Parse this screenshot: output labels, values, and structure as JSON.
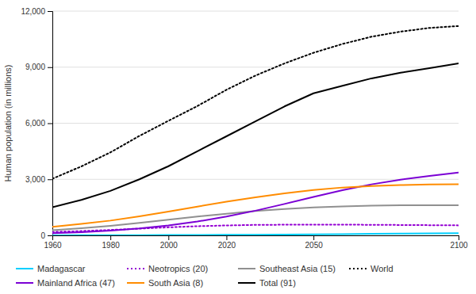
{
  "chart_data": {
    "type": "line",
    "ylabel": "Human population (in millions)",
    "x": [
      1960,
      1970,
      1980,
      1990,
      2000,
      2010,
      2020,
      2030,
      2040,
      2050,
      2060,
      2070,
      2080,
      2090,
      2100
    ],
    "xlim": [
      1960,
      2100
    ],
    "ylim": [
      0,
      12000
    ],
    "xticks": [
      1960,
      1980,
      2000,
      2020,
      2050,
      2100
    ],
    "yticks": [
      0,
      {
        "value": 3000,
        "label": "3,000"
      },
      {
        "value": 6000,
        "label": "6,000"
      },
      {
        "value": 9000,
        "label": "9,000"
      },
      {
        "value": 12000,
        "label": "12,000"
      }
    ],
    "grid": "y",
    "legend": "bottom",
    "series": [
      {
        "name": "Madagascar",
        "color": "#00CFFF",
        "line_style": "solid",
        "values": [
          5,
          7,
          9,
          12,
          16,
          20,
          27,
          35,
          45,
          55,
          68,
          80,
          93,
          103,
          112
        ]
      },
      {
        "name": "Neotropics (20)",
        "color": "#9400D3",
        "line_style": "dotted",
        "values": [
          180,
          230,
          290,
          360,
          430,
          490,
          530,
          560,
          570,
          575,
          572,
          565,
          555,
          545,
          535
        ]
      },
      {
        "name": "Southeast Asia (15)",
        "color": "#909090",
        "line_style": "solid",
        "values": [
          280,
          380,
          510,
          670,
          840,
          1010,
          1160,
          1300,
          1410,
          1490,
          1550,
          1590,
          1610,
          1615,
          1610
        ]
      },
      {
        "name": "World",
        "color": "#000000",
        "line_style": "dotted",
        "values": [
          3030,
          3690,
          4440,
          5320,
          6130,
          6920,
          7790,
          8550,
          9200,
          9770,
          10240,
          10630,
          10900,
          11100,
          11200
        ]
      },
      {
        "name": "Mainland Africa (47)",
        "color": "#7B00D4",
        "line_style": "solid",
        "values": [
          120,
          170,
          250,
          370,
          530,
          740,
          1010,
          1320,
          1680,
          2060,
          2420,
          2730,
          2980,
          3180,
          3360
        ]
      },
      {
        "name": "South Asia (8)",
        "color": "#FF8C00",
        "line_style": "solid",
        "values": [
          460,
          610,
          790,
          1020,
          1270,
          1540,
          1800,
          2040,
          2250,
          2430,
          2560,
          2640,
          2690,
          2720,
          2730
        ]
      },
      {
        "name": "Total (91)",
        "color": "#000000",
        "line_style": "solid",
        "values": [
          1500,
          1900,
          2380,
          3000,
          3700,
          4500,
          5300,
          6100,
          6900,
          7600,
          8000,
          8400,
          8700,
          8950,
          9200
        ]
      }
    ]
  }
}
